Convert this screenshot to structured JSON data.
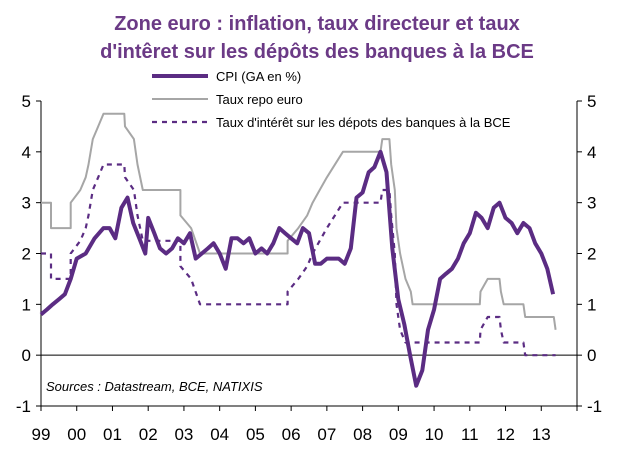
{
  "chart_data": {
    "type": "line",
    "title_line1": "Zone euro : inflation,  taux directeur et taux",
    "title_line2": "d'intêret sur les dépôts des banques à la BCE",
    "source": "Sources : Datastream, BCE, NATIXIS",
    "x_tick_labels": [
      "99",
      "00",
      "01",
      "02",
      "03",
      "04",
      "05",
      "06",
      "07",
      "08",
      "09",
      "10",
      "11",
      "12",
      "13"
    ],
    "y_ticks": [
      -1,
      0,
      1,
      2,
      3,
      4,
      5
    ],
    "ylim": [
      -1,
      5
    ],
    "xlim": [
      1999.0,
      2014.0
    ],
    "grid": false,
    "legend_placement": "top",
    "series": [
      {
        "name": "CPI (GA en %)",
        "color": "#5b2c83",
        "style": "solid-thick",
        "points": [
          [
            1999.0,
            0.8
          ],
          [
            1999.17,
            0.9
          ],
          [
            1999.33,
            1.0
          ],
          [
            1999.5,
            1.1
          ],
          [
            1999.67,
            1.2
          ],
          [
            1999.83,
            1.5
          ],
          [
            2000.0,
            1.9
          ],
          [
            2000.25,
            2.0
          ],
          [
            2000.5,
            2.3
          ],
          [
            2000.75,
            2.5
          ],
          [
            2000.92,
            2.5
          ],
          [
            2001.08,
            2.3
          ],
          [
            2001.25,
            2.9
          ],
          [
            2001.42,
            3.1
          ],
          [
            2001.58,
            2.6
          ],
          [
            2001.75,
            2.3
          ],
          [
            2001.92,
            2.0
          ],
          [
            2002.0,
            2.7
          ],
          [
            2002.17,
            2.4
          ],
          [
            2002.33,
            2.1
          ],
          [
            2002.5,
            2.0
          ],
          [
            2002.67,
            2.1
          ],
          [
            2002.83,
            2.3
          ],
          [
            2003.0,
            2.2
          ],
          [
            2003.17,
            2.4
          ],
          [
            2003.33,
            1.9
          ],
          [
            2003.5,
            2.0
          ],
          [
            2003.67,
            2.1
          ],
          [
            2003.83,
            2.2
          ],
          [
            2004.0,
            2.0
          ],
          [
            2004.17,
            1.7
          ],
          [
            2004.33,
            2.3
          ],
          [
            2004.5,
            2.3
          ],
          [
            2004.67,
            2.2
          ],
          [
            2004.83,
            2.3
          ],
          [
            2005.0,
            2.0
          ],
          [
            2005.17,
            2.1
          ],
          [
            2005.33,
            2.0
          ],
          [
            2005.5,
            2.2
          ],
          [
            2005.67,
            2.5
          ],
          [
            2005.83,
            2.4
          ],
          [
            2006.0,
            2.3
          ],
          [
            2006.17,
            2.2
          ],
          [
            2006.33,
            2.5
          ],
          [
            2006.5,
            2.4
          ],
          [
            2006.67,
            1.8
          ],
          [
            2006.83,
            1.8
          ],
          [
            2007.0,
            1.9
          ],
          [
            2007.17,
            1.9
          ],
          [
            2007.33,
            1.9
          ],
          [
            2007.5,
            1.8
          ],
          [
            2007.67,
            2.1
          ],
          [
            2007.83,
            3.1
          ],
          [
            2008.0,
            3.2
          ],
          [
            2008.17,
            3.6
          ],
          [
            2008.33,
            3.7
          ],
          [
            2008.5,
            4.0
          ],
          [
            2008.67,
            3.6
          ],
          [
            2008.83,
            2.1
          ],
          [
            2009.0,
            1.1
          ],
          [
            2009.17,
            0.6
          ],
          [
            2009.33,
            0.0
          ],
          [
            2009.5,
            -0.6
          ],
          [
            2009.67,
            -0.3
          ],
          [
            2009.83,
            0.5
          ],
          [
            2010.0,
            0.9
          ],
          [
            2010.17,
            1.5
          ],
          [
            2010.33,
            1.6
          ],
          [
            2010.5,
            1.7
          ],
          [
            2010.67,
            1.9
          ],
          [
            2010.83,
            2.2
          ],
          [
            2011.0,
            2.4
          ],
          [
            2011.17,
            2.8
          ],
          [
            2011.33,
            2.7
          ],
          [
            2011.5,
            2.5
          ],
          [
            2011.67,
            2.9
          ],
          [
            2011.83,
            3.0
          ],
          [
            2012.0,
            2.7
          ],
          [
            2012.17,
            2.6
          ],
          [
            2012.33,
            2.4
          ],
          [
            2012.5,
            2.6
          ],
          [
            2012.67,
            2.5
          ],
          [
            2012.83,
            2.2
          ],
          [
            2013.0,
            2.0
          ],
          [
            2013.17,
            1.7
          ],
          [
            2013.33,
            1.2
          ]
        ]
      },
      {
        "name": "Taux repo euro",
        "color": "#a6a6a6",
        "style": "solid",
        "points": [
          [
            1999.0,
            3.0
          ],
          [
            1999.28,
            3.0
          ],
          [
            1999.28,
            2.5
          ],
          [
            1999.83,
            2.5
          ],
          [
            1999.83,
            3.0
          ],
          [
            2000.1,
            3.25
          ],
          [
            2000.25,
            3.5
          ],
          [
            2000.33,
            3.75
          ],
          [
            2000.45,
            4.25
          ],
          [
            2000.6,
            4.5
          ],
          [
            2000.75,
            4.75
          ],
          [
            2001.33,
            4.75
          ],
          [
            2001.35,
            4.5
          ],
          [
            2001.6,
            4.25
          ],
          [
            2001.7,
            3.75
          ],
          [
            2001.85,
            3.25
          ],
          [
            2002.9,
            3.25
          ],
          [
            2002.9,
            2.75
          ],
          [
            2003.2,
            2.5
          ],
          [
            2003.45,
            2.0
          ],
          [
            2005.9,
            2.0
          ],
          [
            2005.9,
            2.25
          ],
          [
            2006.2,
            2.5
          ],
          [
            2006.45,
            2.75
          ],
          [
            2006.6,
            3.0
          ],
          [
            2006.8,
            3.25
          ],
          [
            2007.0,
            3.5
          ],
          [
            2007.45,
            4.0
          ],
          [
            2008.5,
            4.0
          ],
          [
            2008.55,
            4.25
          ],
          [
            2008.75,
            4.25
          ],
          [
            2008.8,
            3.75
          ],
          [
            2008.9,
            3.25
          ],
          [
            2008.95,
            2.5
          ],
          [
            2009.05,
            2.0
          ],
          [
            2009.2,
            1.5
          ],
          [
            2009.35,
            1.25
          ],
          [
            2009.4,
            1.0
          ],
          [
            2011.28,
            1.0
          ],
          [
            2011.3,
            1.25
          ],
          [
            2011.5,
            1.5
          ],
          [
            2011.83,
            1.5
          ],
          [
            2011.87,
            1.25
          ],
          [
            2011.95,
            1.0
          ],
          [
            2012.5,
            1.0
          ],
          [
            2012.55,
            0.75
          ],
          [
            2013.35,
            0.75
          ],
          [
            2013.4,
            0.5
          ]
        ]
      },
      {
        "name": "Taux d'intérêt sur les dépots des banques à la BCE",
        "color": "#5b2c83",
        "style": "dashed",
        "points": [
          [
            1999.0,
            2.0
          ],
          [
            1999.28,
            2.0
          ],
          [
            1999.28,
            1.5
          ],
          [
            1999.83,
            1.5
          ],
          [
            1999.83,
            2.0
          ],
          [
            2000.1,
            2.25
          ],
          [
            2000.25,
            2.5
          ],
          [
            2000.33,
            2.75
          ],
          [
            2000.45,
            3.25
          ],
          [
            2000.6,
            3.5
          ],
          [
            2000.75,
            3.75
          ],
          [
            2001.33,
            3.75
          ],
          [
            2001.35,
            3.5
          ],
          [
            2001.6,
            3.25
          ],
          [
            2001.7,
            2.75
          ],
          [
            2001.85,
            2.25
          ],
          [
            2002.9,
            2.25
          ],
          [
            2002.9,
            1.75
          ],
          [
            2003.2,
            1.5
          ],
          [
            2003.45,
            1.0
          ],
          [
            2005.9,
            1.0
          ],
          [
            2005.9,
            1.25
          ],
          [
            2006.2,
            1.5
          ],
          [
            2006.45,
            1.75
          ],
          [
            2006.6,
            2.0
          ],
          [
            2006.8,
            2.25
          ],
          [
            2007.0,
            2.5
          ],
          [
            2007.45,
            3.0
          ],
          [
            2008.5,
            3.0
          ],
          [
            2008.55,
            3.25
          ],
          [
            2008.75,
            3.25
          ],
          [
            2008.8,
            2.75
          ],
          [
            2008.9,
            2.0
          ],
          [
            2008.95,
            1.0
          ],
          [
            2009.05,
            0.5
          ],
          [
            2009.2,
            0.25
          ],
          [
            2011.28,
            0.25
          ],
          [
            2011.3,
            0.5
          ],
          [
            2011.5,
            0.75
          ],
          [
            2011.83,
            0.75
          ],
          [
            2011.87,
            0.5
          ],
          [
            2011.95,
            0.25
          ],
          [
            2012.5,
            0.25
          ],
          [
            2012.55,
            0.0
          ],
          [
            2013.4,
            0.0
          ]
        ]
      }
    ]
  }
}
